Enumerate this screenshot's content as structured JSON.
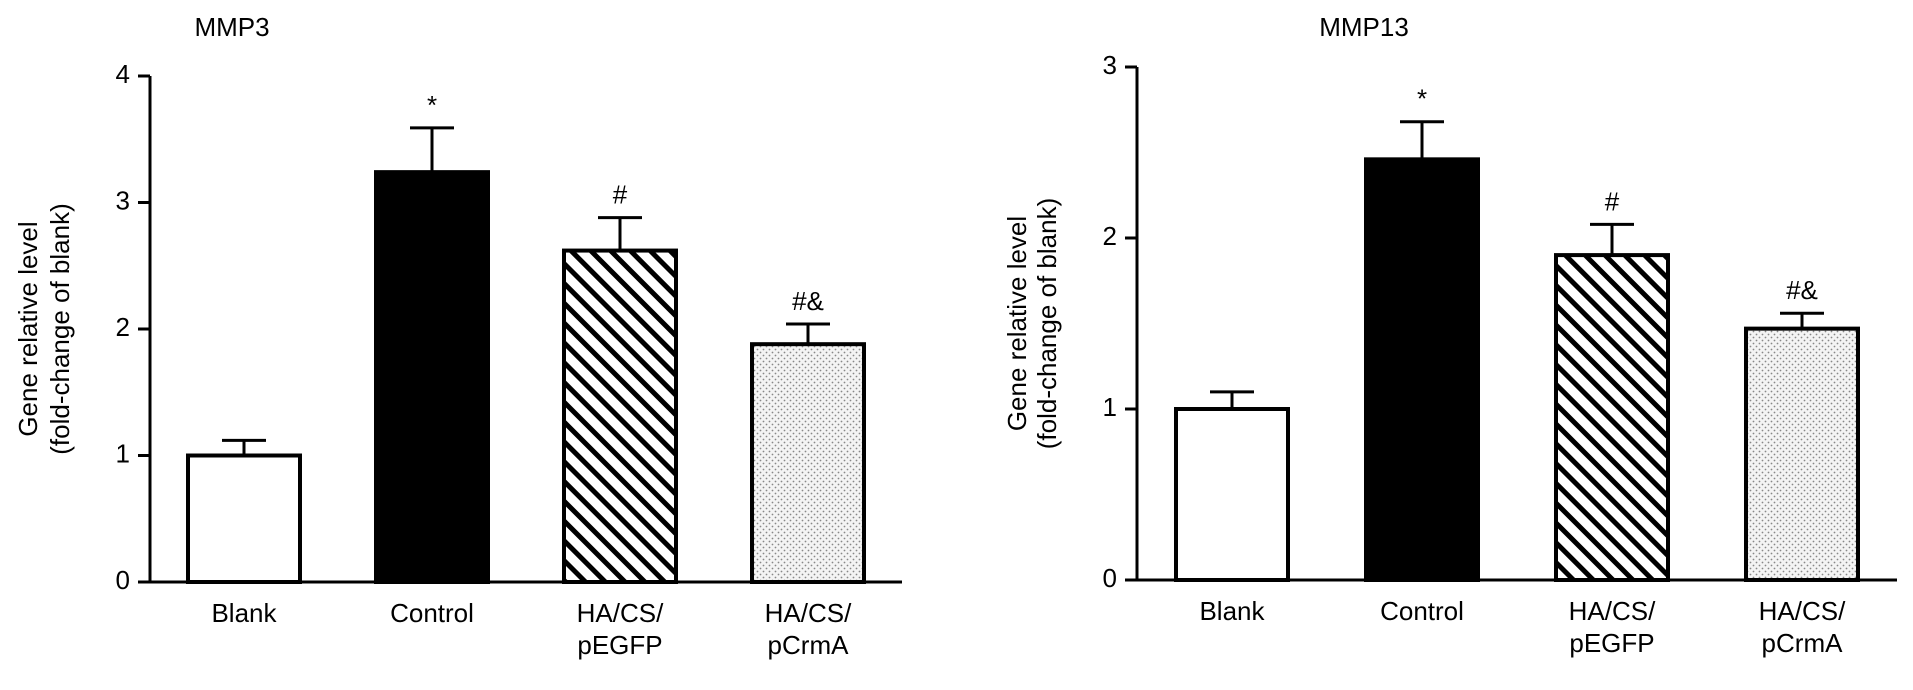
{
  "chart_data": [
    {
      "type": "bar",
      "title": "MMP3",
      "y_label": [
        "Gene relative level",
        "(fold-change of blank)"
      ],
      "categories": [
        [
          "Blank"
        ],
        [
          "Control"
        ],
        [
          "HA/CS/",
          "pEGFP"
        ],
        [
          "HA/CS/",
          "pCrmA"
        ]
      ],
      "values": [
        1.0,
        3.24,
        2.62,
        1.88
      ],
      "errors": [
        0.12,
        0.35,
        0.26,
        0.16
      ],
      "annotations": [
        null,
        "*",
        "#",
        "#&"
      ],
      "fills": [
        "#ffffff",
        "#000000",
        "hatch",
        "dots"
      ],
      "ylim": [
        0,
        4
      ],
      "yticks": [
        0,
        1,
        2,
        3,
        4
      ]
    },
    {
      "type": "bar",
      "title": "MMP13",
      "y_label": [
        "Gene relative level",
        "(fold-change of blank)"
      ],
      "categories": [
        [
          "Blank"
        ],
        [
          "Control"
        ],
        [
          "HA/CS/",
          "pEGFP"
        ],
        [
          "HA/CS/",
          "pCrmA"
        ]
      ],
      "values": [
        1.0,
        2.46,
        1.9,
        1.47
      ],
      "errors": [
        0.1,
        0.22,
        0.18,
        0.09
      ],
      "annotations": [
        null,
        "*",
        "#",
        "#&"
      ],
      "fills": [
        "#ffffff",
        "#000000",
        "hatch",
        "dots"
      ],
      "ylim": [
        0,
        3
      ],
      "yticks": [
        0,
        1,
        2,
        3
      ]
    }
  ]
}
